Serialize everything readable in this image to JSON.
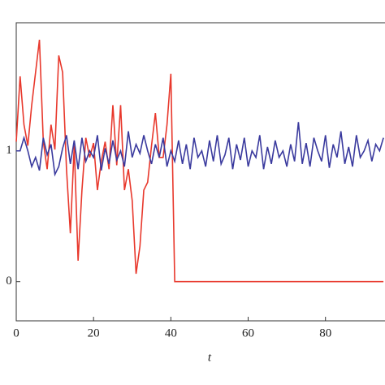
{
  "chart_data": {
    "type": "line",
    "x_label": "t",
    "x": [
      0,
      1,
      2,
      3,
      4,
      5,
      6,
      7,
      8,
      9,
      10,
      11,
      12,
      13,
      14,
      15,
      16,
      17,
      18,
      19,
      20,
      21,
      22,
      23,
      24,
      25,
      26,
      27,
      28,
      29,
      30,
      31,
      32,
      33,
      34,
      35,
      36,
      37,
      38,
      39,
      40,
      41,
      42,
      43,
      44,
      45,
      46,
      47,
      48,
      49,
      50,
      51,
      52,
      53,
      54,
      55,
      56,
      57,
      58,
      59,
      60,
      61,
      62,
      63,
      64,
      65,
      66,
      67,
      68,
      69,
      70,
      71,
      72,
      73,
      74,
      75,
      76,
      77,
      78,
      79,
      80,
      81,
      82,
      83,
      84,
      85,
      86,
      87,
      88,
      89,
      90,
      91,
      92,
      93,
      94,
      95
    ],
    "series": [
      {
        "color": "#e8382c",
        "values": [
          1.07,
          1.57,
          1.2,
          1.04,
          1.35,
          1.6,
          1.85,
          1.07,
          0.86,
          1.2,
          1.01,
          1.73,
          1.6,
          0.86,
          0.37,
          1.04,
          0.16,
          0.7,
          1.1,
          0.95,
          1.06,
          0.7,
          0.92,
          1.07,
          0.86,
          1.35,
          0.89,
          1.35,
          0.7,
          0.86,
          0.62,
          0.06,
          0.27,
          0.7,
          0.76,
          1.04,
          1.29,
          0.95,
          0.95,
          1.2,
          1.59,
          0,
          0,
          0,
          0,
          0,
          0,
          0,
          0,
          0,
          0,
          0,
          0,
          0,
          0,
          0,
          0,
          0,
          0,
          0,
          0,
          0,
          0,
          0,
          0,
          0,
          0,
          0,
          0,
          0,
          0,
          0,
          0,
          0,
          0,
          0,
          0,
          0,
          0,
          0,
          0,
          0,
          0,
          0,
          0,
          0,
          0,
          0,
          0,
          0,
          0,
          0,
          0,
          0,
          0,
          0
        ]
      },
      {
        "color": "#3a3a9e",
        "values": [
          1.0,
          1.0,
          1.1,
          1.0,
          0.88,
          0.95,
          0.85,
          1.1,
          0.97,
          1.05,
          0.82,
          0.88,
          1.02,
          1.12,
          0.9,
          1.08,
          0.86,
          1.1,
          0.92,
          1.0,
          0.95,
          1.12,
          0.85,
          1.02,
          0.9,
          1.08,
          0.93,
          1.0,
          0.88,
          1.15,
          0.95,
          1.05,
          0.98,
          1.12,
          1.0,
          0.9,
          1.05,
          0.95,
          1.1,
          0.88,
          1.0,
          0.92,
          1.08,
          0.9,
          1.05,
          0.86,
          1.1,
          0.95,
          1.0,
          0.88,
          1.08,
          0.92,
          1.12,
          0.9,
          0.97,
          1.1,
          0.86,
          1.05,
          0.93,
          1.1,
          0.88,
          1.0,
          0.95,
          1.12,
          0.86,
          1.03,
          0.9,
          1.08,
          0.95,
          1.0,
          0.88,
          1.05,
          0.92,
          1.22,
          0.9,
          1.06,
          0.88,
          1.1,
          1.0,
          0.92,
          1.12,
          0.87,
          1.05,
          0.95,
          1.15,
          0.9,
          1.03,
          0.88,
          1.12,
          0.95,
          1.0,
          1.08,
          0.92,
          1.05,
          1.0,
          1.1
        ]
      }
    ],
    "xlim": [
      0,
      95.4
    ],
    "ylim": [
      -0.3,
      1.98
    ],
    "xticks": [
      0,
      20,
      40,
      60,
      80
    ],
    "yticks": [
      0,
      1
    ]
  }
}
